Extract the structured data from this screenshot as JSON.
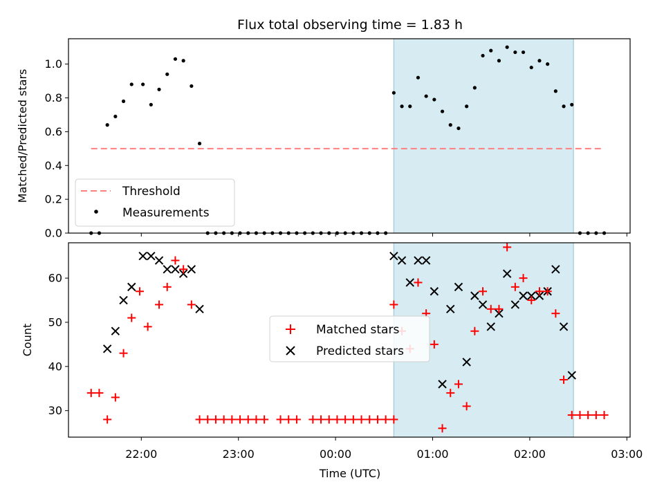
{
  "chart_data": [
    {
      "type": "scatter",
      "title": "Flux total observing time = 1.83 h",
      "xlabel": "",
      "ylabel": "Matched/Predicted stars",
      "ylim": [
        0,
        1.15
      ],
      "yticks": [
        "0.0",
        "0.2",
        "0.4",
        "0.6",
        "0.8",
        "1.0"
      ],
      "xlim": [
        "21:15",
        "03:02"
      ],
      "highlight_span": [
        "00:36",
        "02:27"
      ],
      "highlight_color": "#add8e6",
      "legend_position": "lower-left",
      "series": [
        {
          "name": "Threshold",
          "type": "dashed-line",
          "color": "#ff7f7f",
          "x": [
            "21:29",
            "02:46"
          ],
          "y": [
            0.5,
            0.5
          ]
        },
        {
          "name": "Measurements",
          "type": "dots",
          "color": "#000000",
          "points": [
            [
              "21:29",
              0
            ],
            [
              "21:34",
              0
            ],
            [
              "21:39",
              0.64
            ],
            [
              "21:44",
              0.69
            ],
            [
              "21:49",
              0.78
            ],
            [
              "21:54",
              0.88
            ],
            [
              "22:01",
              0.88
            ],
            [
              "22:06",
              0.76
            ],
            [
              "22:11",
              0.85
            ],
            [
              "22:16",
              0.94
            ],
            [
              "22:21",
              1.03
            ],
            [
              "22:26",
              1.02
            ],
            [
              "22:31",
              0.87
            ],
            [
              "22:36",
              0.53
            ],
            [
              "22:41",
              0
            ],
            [
              "22:46",
              0
            ],
            [
              "22:51",
              0
            ],
            [
              "22:56",
              0
            ],
            [
              "23:01",
              0
            ],
            [
              "23:06",
              0
            ],
            [
              "23:11",
              0
            ],
            [
              "23:16",
              0
            ],
            [
              "23:21",
              0
            ],
            [
              "23:26",
              0
            ],
            [
              "23:31",
              0
            ],
            [
              "23:36",
              0
            ],
            [
              "23:41",
              0
            ],
            [
              "23:46",
              0
            ],
            [
              "23:51",
              0
            ],
            [
              "23:56",
              0
            ],
            [
              "00:01",
              0
            ],
            [
              "00:06",
              0
            ],
            [
              "00:11",
              0
            ],
            [
              "00:16",
              0
            ],
            [
              "00:21",
              0
            ],
            [
              "00:26",
              0
            ],
            [
              "00:31",
              0
            ],
            [
              "00:36",
              0.83
            ],
            [
              "00:41",
              0.75
            ],
            [
              "00:46",
              0.75
            ],
            [
              "00:51",
              0.92
            ],
            [
              "00:56",
              0.81
            ],
            [
              "01:01",
              0.79
            ],
            [
              "01:06",
              0.72
            ],
            [
              "01:11",
              0.64
            ],
            [
              "01:16",
              0.62
            ],
            [
              "01:21",
              0.75
            ],
            [
              "01:26",
              0.86
            ],
            [
              "01:31",
              1.05
            ],
            [
              "01:36",
              1.08
            ],
            [
              "01:41",
              1.02
            ],
            [
              "01:46",
              1.1
            ],
            [
              "01:51",
              1.07
            ],
            [
              "01:56",
              1.07
            ],
            [
              "02:01",
              0.98
            ],
            [
              "02:06",
              1.02
            ],
            [
              "02:11",
              1.0
            ],
            [
              "02:16",
              0.84
            ],
            [
              "02:21",
              0.75
            ],
            [
              "02:26",
              0.76
            ],
            [
              "02:31",
              0
            ],
            [
              "02:36",
              0
            ],
            [
              "02:41",
              0
            ],
            [
              "02:46",
              0
            ]
          ]
        }
      ]
    },
    {
      "type": "scatter",
      "title": "",
      "xlabel": "Time (UTC)",
      "ylabel": "Count",
      "ylim": [
        24,
        68
      ],
      "yticks": [
        "30",
        "40",
        "50",
        "60"
      ],
      "xticks": [
        "22:00",
        "23:00",
        "00:00",
        "01:00",
        "02:00",
        "03:00"
      ],
      "xlim": [
        "21:15",
        "03:02"
      ],
      "highlight_span": [
        "00:36",
        "02:27"
      ],
      "highlight_color": "#add8e6",
      "legend_position": "center",
      "series": [
        {
          "name": "Matched stars",
          "marker": "plus",
          "color": "#ff0000",
          "points": [
            [
              "21:29",
              34
            ],
            [
              "21:34",
              34
            ],
            [
              "21:39",
              28
            ],
            [
              "21:44",
              33
            ],
            [
              "21:49",
              43
            ],
            [
              "21:54",
              51
            ],
            [
              "21:59",
              57
            ],
            [
              "22:04",
              49
            ],
            [
              "22:11",
              54
            ],
            [
              "22:16",
              58
            ],
            [
              "22:21",
              64
            ],
            [
              "22:26",
              62
            ],
            [
              "22:31",
              54
            ],
            [
              "22:36",
              28
            ],
            [
              "22:41",
              28
            ],
            [
              "22:46",
              28
            ],
            [
              "22:51",
              28
            ],
            [
              "22:56",
              28
            ],
            [
              "23:01",
              28
            ],
            [
              "23:06",
              28
            ],
            [
              "23:11",
              28
            ],
            [
              "23:16",
              28
            ],
            [
              "23:26",
              28
            ],
            [
              "23:31",
              28
            ],
            [
              "23:36",
              28
            ],
            [
              "23:46",
              28
            ],
            [
              "23:51",
              28
            ],
            [
              "23:56",
              28
            ],
            [
              "00:01",
              28
            ],
            [
              "00:06",
              28
            ],
            [
              "00:11",
              28
            ],
            [
              "00:16",
              28
            ],
            [
              "00:21",
              28
            ],
            [
              "00:26",
              28
            ],
            [
              "00:31",
              28
            ],
            [
              "00:36",
              28
            ],
            [
              "00:36",
              54
            ],
            [
              "00:41",
              48
            ],
            [
              "00:46",
              44
            ],
            [
              "00:51",
              59
            ],
            [
              "00:56",
              52
            ],
            [
              "01:01",
              45
            ],
            [
              "01:06",
              26
            ],
            [
              "01:11",
              34
            ],
            [
              "01:16",
              36
            ],
            [
              "01:21",
              31
            ],
            [
              "01:26",
              48
            ],
            [
              "01:31",
              57
            ],
            [
              "01:36",
              53
            ],
            [
              "01:41",
              53
            ],
            [
              "01:46",
              67
            ],
            [
              "01:51",
              58
            ],
            [
              "01:56",
              60
            ],
            [
              "02:01",
              55
            ],
            [
              "02:06",
              57
            ],
            [
              "02:11",
              57
            ],
            [
              "02:16",
              52
            ],
            [
              "02:21",
              37
            ],
            [
              "02:26",
              29
            ],
            [
              "02:31",
              29
            ],
            [
              "02:36",
              29
            ],
            [
              "02:41",
              29
            ],
            [
              "02:46",
              29
            ]
          ]
        },
        {
          "name": "Predicted stars",
          "marker": "x",
          "color": "#000000",
          "points": [
            [
              "21:39",
              44
            ],
            [
              "21:44",
              48
            ],
            [
              "21:49",
              55
            ],
            [
              "21:54",
              58
            ],
            [
              "22:01",
              65
            ],
            [
              "22:06",
              65
            ],
            [
              "22:11",
              64
            ],
            [
              "22:16",
              62
            ],
            [
              "22:21",
              62
            ],
            [
              "22:26",
              61
            ],
            [
              "22:31",
              62
            ],
            [
              "22:36",
              53
            ],
            [
              "00:36",
              65
            ],
            [
              "00:41",
              64
            ],
            [
              "00:46",
              59
            ],
            [
              "00:51",
              64
            ],
            [
              "00:56",
              64
            ],
            [
              "01:01",
              57
            ],
            [
              "01:06",
              36
            ],
            [
              "01:11",
              53
            ],
            [
              "01:16",
              58
            ],
            [
              "01:21",
              41
            ],
            [
              "01:26",
              56
            ],
            [
              "01:31",
              54
            ],
            [
              "01:36",
              49
            ],
            [
              "01:41",
              52
            ],
            [
              "01:46",
              61
            ],
            [
              "01:51",
              54
            ],
            [
              "01:56",
              56
            ],
            [
              "02:01",
              56
            ],
            [
              "02:06",
              56
            ],
            [
              "02:11",
              57
            ],
            [
              "02:16",
              62
            ],
            [
              "02:21",
              49
            ],
            [
              "02:26",
              38
            ]
          ]
        }
      ]
    }
  ]
}
